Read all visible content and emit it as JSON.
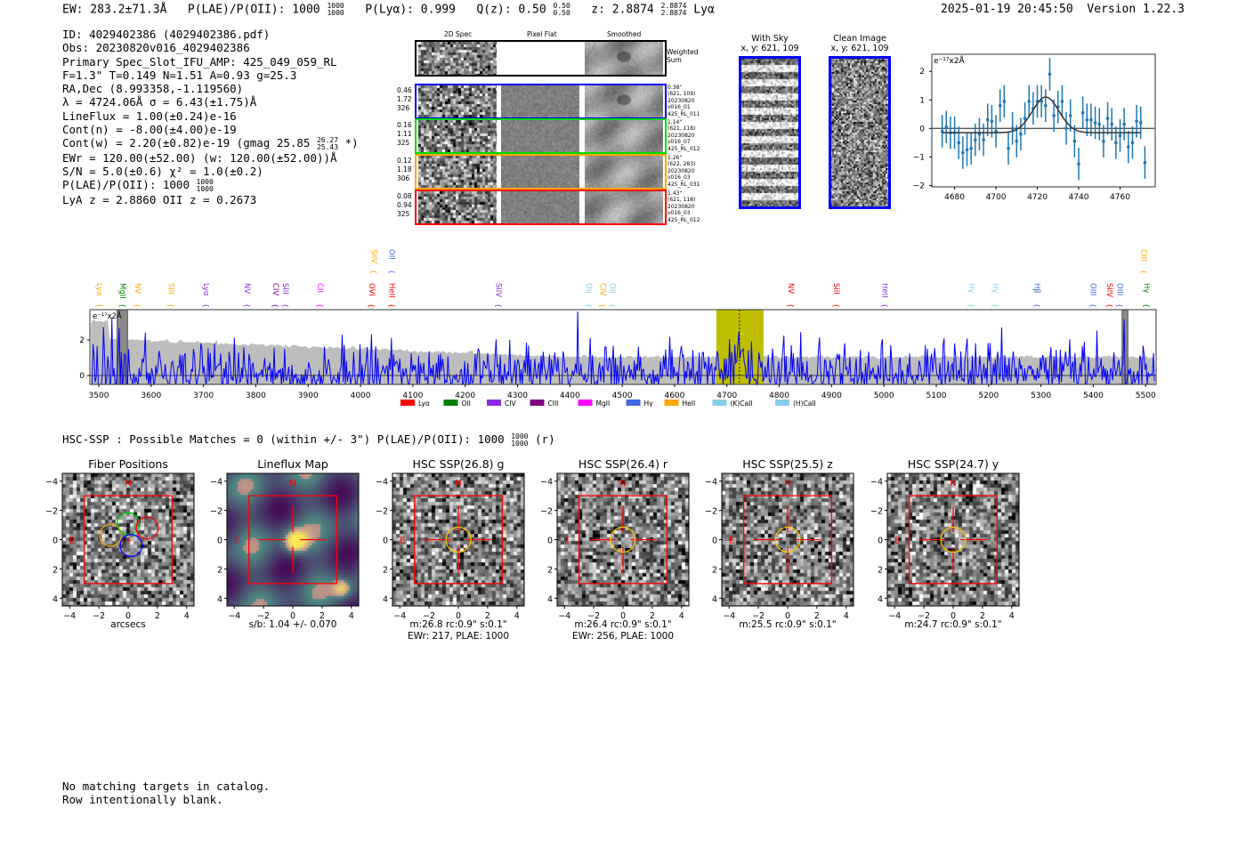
{
  "header": {
    "ew": "EW: 283.2±71.3Å",
    "plae_label": "P(LAE)/P(OII): 1000",
    "plae_hi": "1000",
    "plae_lo": "1000",
    "plya": "P(Lyα): 0.999",
    "qz": "Q(z): 0.50",
    "qz_hi": "0.50",
    "qz_lo": "0.50",
    "z": "z: 2.8874",
    "z_hi": "2.8874",
    "z_lo": "2.8874",
    "z_line": "Lyα",
    "datetime": "2025-01-19 20:45:50",
    "version": "Version 1.22.3"
  },
  "info": {
    "lines": [
      "ID: 4029402386 (4029402386.pdf)",
      "Obs: 20230820v016_4029402386",
      "Primary Spec_Slot_IFU_AMP: 425_049_059_RL",
      "F=1.3\"  T=0.149  N=1.51  A=0.93  g=25.3",
      "RA,Dec (8.993358,-1.119560)",
      "λ = 4724.06Å  σ = 6.43(±1.75)Å",
      "LineFlux = 1.00(±0.24)e-16",
      "Cont(n) = -8.00(±4.00)e-19"
    ],
    "contw": "Cont(w) = 2.20(±0.82)e-19 (gmag 25.85",
    "contw_hi": "26.27",
    "contw_lo": "25.43",
    "contw_end": "*)",
    "lines2": [
      "EWr = 120.00(±52.00) (w: 120.00(±52.00))Å",
      "S/N = 5.0(±0.6)  χ² = 1.0(±0.2)"
    ],
    "plae": "P(LAE)/P(OII): 1000",
    "plae_hi": "1000",
    "plae_lo": "1000",
    "z_line": "LyA z = 2.8860  OII z = 0.2673"
  },
  "spec2d": {
    "col_headers": [
      "2D Spec",
      "Pixel Flat",
      "Smoothed"
    ],
    "weighted_label": "Weighted Sum",
    "rows": [
      {
        "color": "#0000ff",
        "nums": [
          "0.46",
          "1.72",
          "326"
        ],
        "meta": [
          "0.38\"",
          "(621, 109)",
          "20230820",
          "v016_01",
          "425_RL_011"
        ]
      },
      {
        "color": "#00dd00",
        "nums": [
          "0.16",
          "1.11",
          "325"
        ],
        "meta": [
          "1.14\"",
          "(621, 118)",
          "20230820",
          "v016_07",
          "425_RL_012"
        ]
      },
      {
        "color": "#ffa500",
        "nums": [
          "0.12",
          "1.18",
          "306"
        ],
        "meta": [
          "1.26\"",
          "(622, 283)",
          "20230820",
          "v016_03",
          "425_RL_031"
        ]
      },
      {
        "color": "#ff0000",
        "nums": [
          "0.08",
          "0.94",
          "325"
        ],
        "meta": [
          "1.43\"",
          "(621, 118)",
          "20230820",
          "v016_03",
          "425_RL_012"
        ]
      }
    ]
  },
  "sky": {
    "with_sky_title": "With Sky",
    "with_sky_xy": "x, y: 621, 109",
    "clean_title": "Clean Image",
    "clean_xy": "x, y: 621, 109"
  },
  "chart_data": [
    {
      "type": "scatter",
      "title": "",
      "ylabel": "e⁻¹⁷x2Å",
      "xlim": [
        4669,
        4777
      ],
      "ylim": [
        -2.05,
        2.6
      ],
      "xticks": [
        "4680",
        "4700",
        "4720",
        "4740",
        "4760"
      ],
      "yticks": [
        "2",
        "1",
        "0",
        "−1",
        "−2"
      ],
      "x": [
        4674,
        4676,
        4678,
        4680,
        4682,
        4684,
        4686,
        4688,
        4690,
        4692,
        4694,
        4696,
        4698,
        4700,
        4702,
        4704,
        4706,
        4708,
        4710,
        4712,
        4714,
        4716,
        4718,
        4720,
        4722,
        4724,
        4726,
        4728,
        4730,
        4732,
        4734,
        4736,
        4738,
        4740,
        4742,
        4744,
        4746,
        4748,
        4750,
        4752,
        4754,
        4756,
        4758,
        4760,
        4762,
        4764,
        4766,
        4768,
        4770,
        4772
      ],
      "y": [
        -0.1,
        0.05,
        -0.15,
        -0.15,
        -0.5,
        -0.85,
        -0.75,
        -0.7,
        -0.4,
        -0.2,
        -0.4,
        0.3,
        0.25,
        -0.1,
        0.8,
        0.95,
        -0.7,
        0.0,
        -0.45,
        -0.2,
        0.35,
        0.95,
        0.7,
        0.95,
        0.95,
        0.8,
        1.9,
        0.45,
        0.75,
        0.95,
        0.0,
        0.45,
        -0.45,
        -1.25,
        0.55,
        0.3,
        0.3,
        0.2,
        0.15,
        -0.45,
        0.35,
        0.15,
        -0.5,
        -0.25,
        0.15,
        -0.65,
        -0.5,
        0.25,
        0.2,
        -1.2
      ],
      "yerr": 0.57,
      "fit": {
        "center": 4724.06,
        "sigma": 6.43,
        "amplitude": 1.25,
        "baseline": -0.15,
        "range": [
          4674,
          4770
        ]
      }
    },
    {
      "type": "line",
      "title": "",
      "ylabel": "e⁻¹⁷x2Å",
      "xlim": [
        3483,
        5520
      ],
      "ylim": [
        -0.5,
        3.7
      ],
      "xticks": [
        3500,
        3600,
        3700,
        3800,
        3900,
        4000,
        4100,
        4200,
        4300,
        4400,
        4500,
        4600,
        4700,
        4800,
        4900,
        5000,
        5100,
        5200,
        5300,
        5400,
        5500
      ],
      "yticks": [
        0,
        2
      ],
      "highlight_band": [
        4680,
        4770
      ],
      "line_center": 4724.06,
      "masked": [
        [
          3535,
          3555
        ],
        [
          5455,
          5466
        ]
      ],
      "error_level": {
        "start": 2.1,
        "end": 1.05
      },
      "line_labels": [
        {
          "name": "Lyα",
          "w": 3502,
          "color": "#ffa500",
          "row": 0
        },
        {
          "name": "MgII",
          "w": 3546,
          "color": "#008000",
          "row": 0
        },
        {
          "name": "NV",
          "w": 3575,
          "color": "#ffa500",
          "row": 0
        },
        {
          "name": "SiII",
          "w": 3639,
          "color": "#ffa500",
          "row": 0
        },
        {
          "name": "Lyα",
          "w": 3706,
          "color": "#8a2be2",
          "row": 0
        },
        {
          "name": "NV",
          "w": 3784,
          "color": "#8a2be2",
          "row": 0
        },
        {
          "name": "CIV",
          "w": 3838,
          "color": "#800080",
          "row": 0
        },
        {
          "name": "SiII",
          "w": 3852,
          "color": "#8a2be2",
          "row": 0
        },
        {
          "name": "CII",
          "w": 3923,
          "color": "#ff00ff",
          "row": 0
        },
        {
          "name": "OVI",
          "w": 4022,
          "color": "#ff0000",
          "row": 0
        },
        {
          "name": "HeII",
          "w": 4060,
          "color": "#ff0000",
          "row": 0
        },
        {
          "name": "SiIV",
          "w": 4264,
          "color": "#8a2be2",
          "row": 0
        },
        {
          "name": "OII",
          "w": 4437,
          "color": "#87ceeb",
          "row": 0
        },
        {
          "name": "CIV",
          "w": 4463,
          "color": "#ffa500",
          "row": 0
        },
        {
          "name": "OII",
          "w": 4478,
          "color": "#87ceeb",
          "row": 0
        },
        {
          "name": "NV",
          "w": 4823,
          "color": "#ff0000",
          "row": 0
        },
        {
          "name": "SiII",
          "w": 4910,
          "color": "#ff0000",
          "row": 0
        },
        {
          "name": "HeII",
          "w": 5002,
          "color": "#8a2be2",
          "row": 0
        },
        {
          "name": "Hγ",
          "w": 5167,
          "color": "#87ceeb",
          "row": 0
        },
        {
          "name": "Hγ",
          "w": 5213,
          "color": "#87ceeb",
          "row": 0
        },
        {
          "name": "Hβ",
          "w": 5293,
          "color": "#4169e1",
          "row": 0
        },
        {
          "name": "OIII",
          "w": 5400,
          "color": "#4169e1",
          "row": 0
        },
        {
          "name": "SiIV",
          "w": 5432,
          "color": "#ff0000",
          "row": 0
        },
        {
          "name": "OIII",
          "w": 5451,
          "color": "#4169e1",
          "row": 0
        },
        {
          "name": "Hγ",
          "w": 5502,
          "color": "#008000",
          "row": 0
        },
        {
          "name": "SiIV",
          "w": 4026,
          "color": "#ffa500",
          "row": 1
        },
        {
          "name": "OII",
          "w": 4060,
          "color": "#4169e1",
          "row": 1
        },
        {
          "name": "CIII",
          "w": 5497,
          "color": "#ffa500",
          "row": 1
        }
      ],
      "legend": [
        {
          "name": "Lyα",
          "color": "#ff0000"
        },
        {
          "name": "OII",
          "color": "#008000"
        },
        {
          "name": "CIV",
          "color": "#8a2be2"
        },
        {
          "name": "CIII",
          "color": "#800080"
        },
        {
          "name": "MgII",
          "color": "#ff00ff"
        },
        {
          "name": "Hγ",
          "color": "#4169e1"
        },
        {
          "name": "HeII",
          "color": "#ffa500"
        },
        {
          "name": "(K)CaII",
          "color": "#87ceeb"
        },
        {
          "name": "(H)CaII",
          "color": "#87ceeb"
        }
      ]
    }
  ],
  "hsc": {
    "summary": "HSC-SSP : Possible Matches = 0 (within +/- 3\")  P(LAE)/P(OII): 1000",
    "summary_hi": "1000",
    "summary_lo": "1000",
    "summary_end": "(r)",
    "ticks": [
      "−4",
      "−2",
      "0",
      "2",
      "4"
    ],
    "north": "N",
    "east": "E",
    "panels": [
      {
        "title": "Fiber Positions",
        "cap1": "arcsecs",
        "cap2": ""
      },
      {
        "title": "Lineflux Map",
        "cap1": "s/b: 1.04 +/- 0.070",
        "cap2": ""
      },
      {
        "title": "HSC SSP(26.8) g",
        "cap1": "m:26.8 rc:0.9\"  s:0.1\"",
        "cap2": "EWr: 217, PLAE: 1000"
      },
      {
        "title": "HSC SSP(26.4) r",
        "cap1": "m:26.4 rc:0.9\"  s:0.1\"",
        "cap2": "EWr: 256, PLAE: 1000"
      },
      {
        "title": "HSC SSP(25.5) z",
        "cap1": "m:25.5 rc:0.9\"  s:0.1\"",
        "cap2": ""
      },
      {
        "title": "HSC SSP(24.7) y",
        "cap1": "m:24.7 rc:0.9\"  s:0.1\"",
        "cap2": ""
      }
    ]
  },
  "footer": {
    "lines": [
      "No matching targets in catalog.",
      "Row intentionally blank."
    ]
  }
}
